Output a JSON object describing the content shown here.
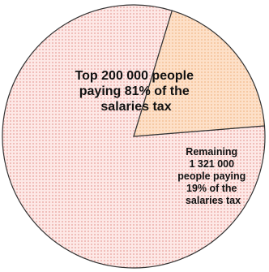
{
  "chart_data": {
    "type": "pie",
    "title": "",
    "slices": [
      {
        "value": 81,
        "label_lines": [
          "Top 200 000 people",
          "paying  81% of the",
          "salaries tax"
        ]
      },
      {
        "value": 19,
        "label_lines": [
          "Remaining",
          "1 321 000",
          "people paying",
          "19% of the",
          "salaries tax"
        ]
      }
    ],
    "colors": {
      "slice_0": "#fde8e6",
      "slice_0_dots": "#e8a09a",
      "slice_1": "#fde0c8",
      "slice_1_dots": "#f2b98a",
      "outline": "#333333"
    }
  }
}
